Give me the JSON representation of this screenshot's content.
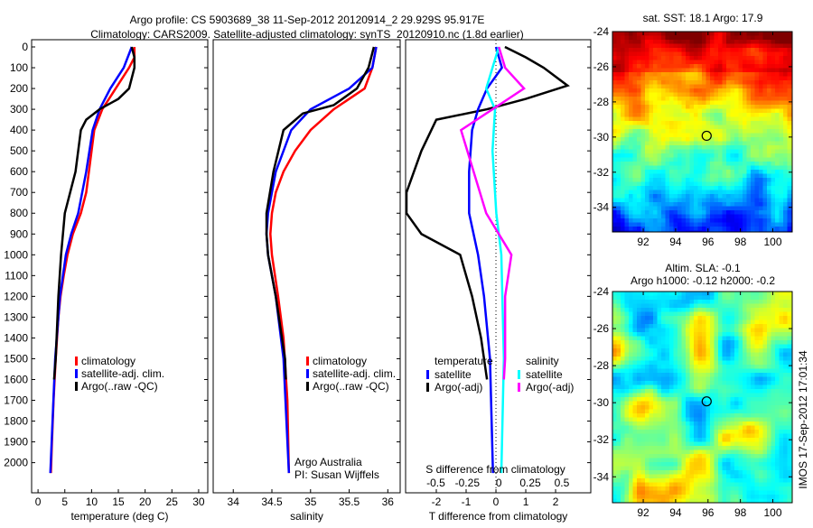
{
  "title": {
    "line1": "Argo profile: CS 5903689_38 11-Sep-2012 20120914_2 29.929S 95.917E",
    "line2": "Climatology: CARS2009. Satellite-adjusted climatology: synTS_20120910.nc (1.8d earlier)"
  },
  "colors": {
    "climatology": "#ff0000",
    "satellite": "#0000ff",
    "argo": "#000000",
    "sal_satellite": "#00ffff",
    "sal_argo": "#ff00ff"
  },
  "chart_data": [
    {
      "type": "line",
      "name": "temperature-profile",
      "xlabel": "temperature (deg C)",
      "xlim": [
        -1.2,
        31.7
      ],
      "ylim": [
        0,
        2145
      ],
      "xticks": [
        0,
        5,
        10,
        15,
        20,
        25,
        30
      ],
      "yticks": [
        0,
        100,
        200,
        300,
        400,
        500,
        600,
        700,
        800,
        900,
        1000,
        1100,
        1200,
        1300,
        1400,
        1500,
        1600,
        1700,
        1800,
        1900,
        2000
      ],
      "legend": [
        "climatology",
        "satellite-adj. clim.",
        "Argo(..raw -QC)"
      ],
      "legend_placement": "center",
      "series": [
        {
          "name": "climatology",
          "color": "#ff0000",
          "depth": [
            0,
            50,
            100,
            200,
            300,
            400,
            500,
            600,
            700,
            800,
            900,
            1000,
            1100,
            1200,
            1300,
            1500,
            1700,
            1900,
            2050
          ],
          "values": [
            18,
            18,
            17,
            14.5,
            12,
            10.5,
            10,
            9.5,
            9,
            8,
            6.5,
            5.5,
            4.8,
            4.2,
            3.8,
            3.3,
            2.9,
            2.6,
            2.4
          ]
        },
        {
          "name": "satellite-adj. clim.",
          "color": "#0000ff",
          "depth": [
            0,
            100,
            200,
            300,
            400,
            600,
            800,
            900,
            1000,
            1200,
            1500,
            2050
          ],
          "values": [
            17.5,
            16,
            13.5,
            11.5,
            10.2,
            9,
            7.5,
            6.2,
            5.2,
            4.1,
            3.2,
            2.3
          ]
        },
        {
          "name": "Argo(..raw -QC)",
          "color": "#000000",
          "depth": [
            0,
            50,
            100,
            200,
            250,
            300,
            350,
            400,
            600,
            700,
            800,
            1000,
            1200,
            1500,
            1600
          ],
          "values": [
            17.5,
            18,
            18,
            17,
            15,
            11.5,
            9,
            8,
            7,
            6,
            5,
            4.3,
            3.8,
            3.3,
            3.0
          ]
        }
      ]
    },
    {
      "type": "line",
      "name": "salinity-profile",
      "xlabel": "salinity",
      "xlim": [
        33.74,
        36.16
      ],
      "ylim": [
        0,
        2145
      ],
      "xticks": [
        34,
        34.5,
        35,
        35.5,
        36
      ],
      "legend": [
        "climatology",
        "satellite-adj. clim.",
        "Argo(..raw -QC)"
      ],
      "annotation": [
        "Argo Australia",
        "PI: Susan Wijffels"
      ],
      "series": [
        {
          "name": "climatology",
          "color": "#ff0000",
          "depth": [
            0,
            100,
            200,
            300,
            400,
            500,
            600,
            700,
            800,
            900,
            1000,
            1200,
            1400,
            1700,
            2050
          ],
          "values": [
            35.85,
            35.8,
            35.7,
            35.3,
            35.0,
            34.8,
            34.65,
            34.55,
            34.5,
            34.48,
            34.5,
            34.58,
            34.65,
            34.7,
            34.72
          ]
        },
        {
          "name": "satellite-adj. clim.",
          "color": "#0000ff",
          "depth": [
            0,
            100,
            200,
            300,
            400,
            600,
            800,
            900,
            1000,
            1200,
            1500,
            2050
          ],
          "values": [
            35.85,
            35.8,
            35.5,
            35.0,
            34.75,
            34.55,
            34.45,
            34.43,
            34.45,
            34.55,
            34.65,
            34.72
          ]
        },
        {
          "name": "Argo(..raw -QC)",
          "color": "#000000",
          "depth": [
            0,
            100,
            200,
            280,
            320,
            400,
            600,
            800,
            900,
            1000,
            1200,
            1500,
            1600
          ],
          "values": [
            35.82,
            35.75,
            35.6,
            35.3,
            34.9,
            34.65,
            34.52,
            34.43,
            34.43,
            34.45,
            34.55,
            34.67,
            34.68
          ]
        }
      ]
    },
    {
      "type": "line",
      "name": "difference-profile",
      "xlabel": "T difference from climatology",
      "x2label": "S difference from climatology",
      "xlim": [
        -3.03,
        3.18
      ],
      "x2lim": [
        -0.74,
        0.73
      ],
      "ylim": [
        0,
        2145
      ],
      "xticks": [
        -2,
        -1,
        0,
        1,
        2
      ],
      "x2ticks": [
        -0.5,
        -0.25,
        0,
        0.25,
        0.5
      ],
      "x2ticklabels": [
        "-0.5",
        "-0.25",
        "0",
        "0.25",
        "0.5"
      ],
      "legend_temperature": {
        "title": "temperature",
        "items": [
          "satellite",
          "Argo(-adj)"
        ]
      },
      "legend_salinity": {
        "title": "salinity",
        "items": [
          "satellite",
          "Argo(-adj)"
        ]
      },
      "series": [
        {
          "name": "T Argo(-adj)",
          "axis": "T",
          "color": "#000000",
          "depth": [
            0,
            50,
            100,
            186,
            250,
            300,
            350,
            500,
            700,
            800,
            900,
            1000,
            1200,
            1400,
            1600
          ],
          "values": [
            0.3,
            1.0,
            1.6,
            2.4,
            1.0,
            -0.3,
            -2.0,
            -2.5,
            -3.0,
            -3.0,
            -2.5,
            -1.2,
            -0.8,
            -0.5,
            -0.3
          ]
        },
        {
          "name": "T satellite",
          "axis": "T",
          "color": "#0000ff",
          "depth": [
            0,
            100,
            200,
            300,
            400,
            600,
            800,
            1000,
            1200,
            1500,
            2050
          ],
          "values": [
            0,
            0.2,
            -0.3,
            -0.6,
            -0.8,
            -0.9,
            -0.9,
            -0.6,
            -0.4,
            -0.2,
            -0.1
          ]
        },
        {
          "name": "S satellite",
          "axis": "S",
          "color": "#00ffff",
          "depth": [
            0,
            100,
            200,
            300,
            500,
            800,
            1000,
            1500,
            2050
          ],
          "values": [
            0,
            -0.05,
            -0.1,
            -0.03,
            -0.05,
            -0.02,
            0.02,
            0.04,
            0.02
          ]
        },
        {
          "name": "S Argo(-adj)",
          "axis": "S",
          "color": "#ff00ff",
          "depth": [
            0,
            100,
            200,
            280,
            400,
            600,
            800,
            1000,
            1200,
            1500,
            1600
          ],
          "values": [
            0,
            0.05,
            0.2,
            0,
            -0.3,
            -0.2,
            -0.1,
            0.1,
            0.05,
            0.05,
            0.04
          ]
        }
      ]
    },
    {
      "type": "heatmap",
      "name": "sst-map",
      "title": "sat. SST: 18.1  Argo: 17.9",
      "xlim": [
        90.1,
        101.2
      ],
      "ylim": [
        -35.4,
        -24
      ],
      "xticks": [
        92,
        94,
        96,
        98,
        100
      ],
      "yticks": [
        -24,
        -26,
        -28,
        -30,
        -32,
        -34
      ],
      "marker": {
        "lon": 95.917,
        "lat": -29.929
      }
    },
    {
      "type": "heatmap",
      "name": "sla-map",
      "title": "Altim. SLA: -0.1",
      "subtitle": "Argo h1000: -0.12 h2000: -0.2",
      "xlim": [
        90.1,
        101.2
      ],
      "ylim": [
        -35.4,
        -24
      ],
      "xticks": [
        92,
        94,
        96,
        98,
        100
      ],
      "yticks": [
        -24,
        -26,
        -28,
        -30,
        -32,
        -34
      ],
      "marker": {
        "lon": 95.917,
        "lat": -29.929
      }
    }
  ],
  "footer": {
    "stamp": "IMOS 17-Sep-2012 17:01:34"
  }
}
